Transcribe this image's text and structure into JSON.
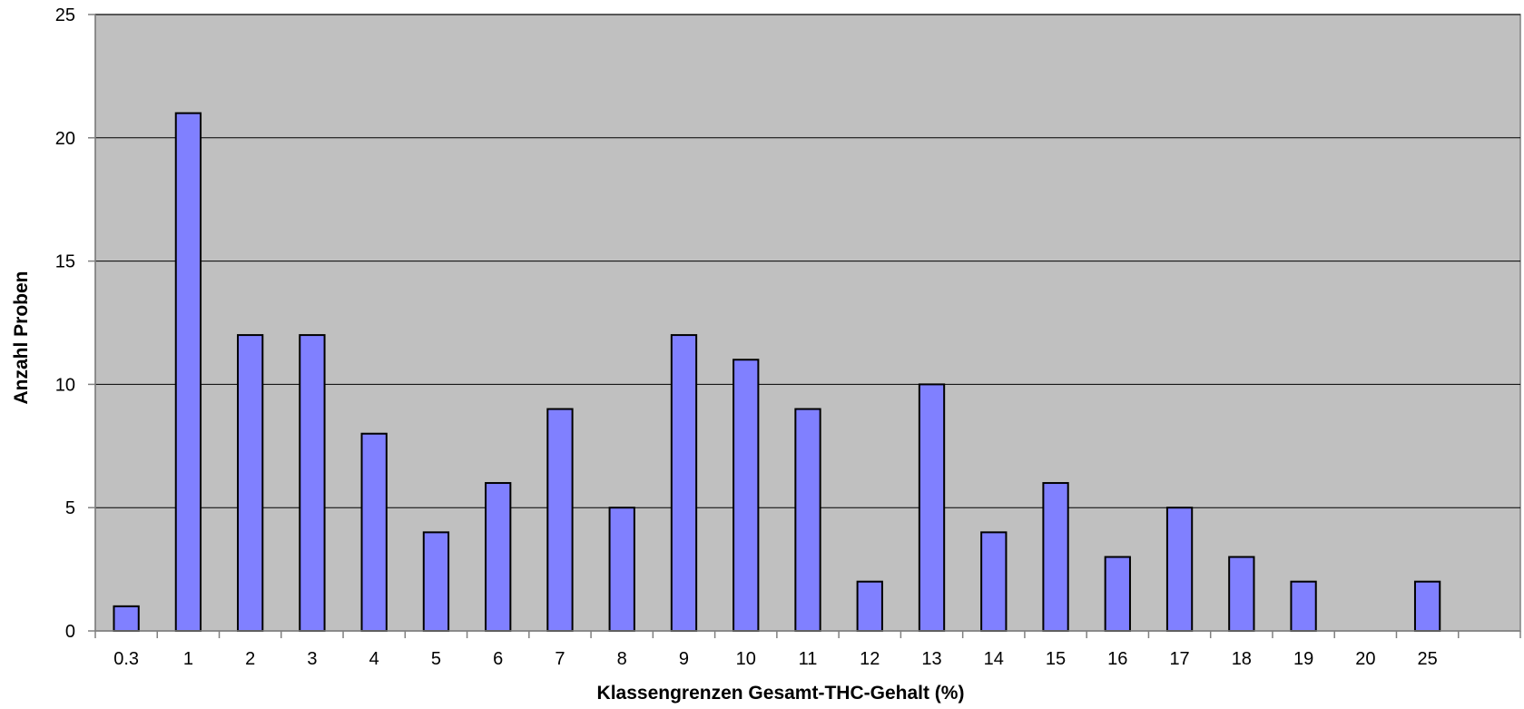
{
  "chart_data": {
    "type": "bar",
    "title": "",
    "xlabel": "Klassengrenzen Gesamt-THC-Gehalt (%)",
    "ylabel": "Anzahl Proben",
    "categories": [
      "0.3",
      "1",
      "2",
      "3",
      "4",
      "5",
      "6",
      "7",
      "8",
      "9",
      "10",
      "11",
      "12",
      "13",
      "14",
      "15",
      "16",
      "17",
      "18",
      "19",
      "20",
      "25"
    ],
    "values": [
      1,
      21,
      12,
      12,
      8,
      4,
      6,
      9,
      5,
      12,
      11,
      9,
      2,
      10,
      4,
      6,
      3,
      5,
      3,
      2,
      0,
      2
    ],
    "ylim": [
      0,
      25
    ],
    "yticks": [
      "0",
      "5",
      "10",
      "15",
      "20",
      "25"
    ],
    "slots": 23,
    "grid": true,
    "legend": "none",
    "colors": {
      "bar": "#8080ff",
      "bar_edge": "#000000",
      "plot_background": "#c0c0c0",
      "gridline": "#000000"
    }
  }
}
